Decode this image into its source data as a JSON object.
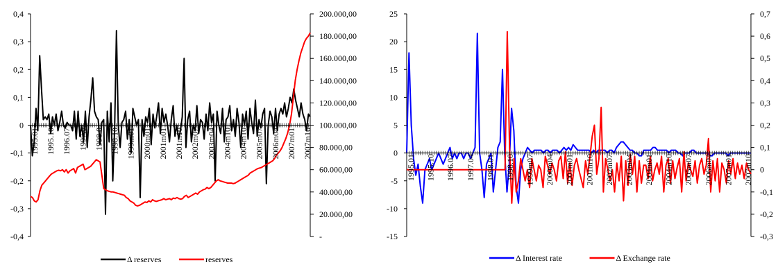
{
  "chart_data": [
    {
      "type": "line",
      "x_tick_labels": [
        "1995.01",
        "1995.10",
        "1996.07",
        "1997.04",
        "1998.01",
        "1998.10",
        "1999.07",
        "2000.04",
        "2001.01",
        "2001.10",
        "2002.07",
        "2003.04",
        "2004.01",
        "2004.10",
        "2005.07",
        "2006.04",
        "2007.01",
        "2007.10"
      ],
      "x_ticks_shown": [
        "1995.01",
        "1995.10",
        "1996.07",
        "1997.0",
        "1998.0",
        "1998.10",
        "1999m01",
        "2000m01",
        "2001m01",
        "2001m10",
        "2002m07",
        "2003m04",
        "2004m10",
        "2004m10",
        "2005m07",
        "2006m04",
        "2007m01",
        "2007m10"
      ],
      "y_left_ticks": [
        "0,4",
        "0,3",
        "0,2",
        "0,1",
        "0",
        "-0,1",
        "-0,2",
        "-0,3",
        "-0,4"
      ],
      "y_left_range": [
        -0.4,
        0.4
      ],
      "y_right_ticks": [
        "200.000,00",
        "180.000,00",
        "160.000,00",
        "140.000,00",
        "120.000,00",
        "100.000,00",
        "80.000,00",
        "60.000,00",
        "40.000,00",
        "20.000,00",
        "-"
      ],
      "y_right_range": [
        0,
        200000
      ],
      "series": [
        {
          "name": "Δ reserves",
          "color": "#000000",
          "axis": "left",
          "values": [
            0.0,
            -0.11,
            -0.06,
            0.06,
            -0.02,
            0.25,
            0.13,
            0.02,
            0.03,
            0.02,
            0.04,
            -0.03,
            0.03,
            0.0,
            0.04,
            -0.02,
            0.01,
            0.05,
            0.0,
            -0.01,
            0.01,
            0.0,
            0.0,
            -0.02,
            0.05,
            -0.05,
            0.05,
            -0.04,
            0.0,
            -0.06,
            0.05,
            -0.08,
            0.03,
            0.09,
            0.17,
            0.05,
            0.03,
            0.02,
            -0.07,
            0.01,
            0.02,
            -0.32,
            0.05,
            -0.06,
            0.08,
            -0.2,
            -0.01,
            0.34,
            0.0,
            -0.08,
            0.01,
            0.02,
            0.05,
            -0.05,
            0.02,
            -0.1,
            0.06,
            0.03,
            0.0,
            0.02,
            -0.26,
            0.02,
            -0.04,
            0.03,
            0.01,
            0.06,
            -0.07,
            0.04,
            -0.01,
            0.03,
            0.08,
            -0.03,
            0.06,
            0.01,
            0.04,
            0.0,
            -0.06,
            0.02,
            0.07,
            -0.04,
            0.0,
            -0.05,
            -0.02,
            0.03,
            0.24,
            -0.08,
            0.02,
            0.05,
            -0.06,
            0.0,
            -0.02,
            0.07,
            -0.03,
            0.02,
            0.01,
            -0.05,
            0.04,
            -0.02,
            0.08,
            0.01,
            0.04,
            -0.2,
            0.05,
            0.0,
            -0.03,
            0.06,
            -0.06,
            0.02,
            0.03,
            0.07,
            -0.02,
            0.02,
            -0.04,
            0.06,
            0.01,
            -0.08,
            0.04,
            0.0,
            0.05,
            -0.05,
            0.06,
            0.01,
            -0.03,
            0.09,
            -0.04,
            0.02,
            -0.01,
            0.04,
            0.06,
            -0.21,
            0.0,
            0.05,
            0.03,
            -0.03,
            0.06,
            -0.02,
            0.04,
            0.06,
            0.04,
            0.08,
            0.03,
            0.06,
            0.1,
            0.08,
            0.13,
            0.09,
            0.06,
            0.03,
            0.08,
            0.04,
            0.02,
            -0.02,
            0.04,
            0.03
          ]
        },
        {
          "name": "reserves",
          "color": "#ff0000",
          "axis": "right",
          "values": [
            36000,
            35000,
            32000,
            31000,
            33000,
            41000,
            46000,
            48000,
            50000,
            52000,
            54000,
            56000,
            57000,
            58000,
            59000,
            59500,
            59000,
            60000,
            58000,
            60000,
            57000,
            59000,
            60000,
            61000,
            57000,
            62000,
            63000,
            64000,
            65000,
            60000,
            61000,
            62000,
            63000,
            65000,
            67000,
            69000,
            68000,
            67000,
            55000,
            43000,
            42000,
            41000,
            40500,
            40000,
            40000,
            39500,
            39000,
            38500,
            38000,
            37500,
            37000,
            35000,
            34000,
            32000,
            31000,
            30000,
            28000,
            27500,
            28000,
            29000,
            30000,
            31000,
            30500,
            32000,
            31000,
            33000,
            32000,
            31500,
            32000,
            32500,
            33000,
            34000,
            33000,
            33500,
            34000,
            33000,
            34500,
            34000,
            35000,
            34000,
            33500,
            34000,
            36000,
            37000,
            35000,
            36000,
            37000,
            38000,
            39000,
            38000,
            40000,
            41000,
            42000,
            42500,
            44000,
            43000,
            44000,
            46000,
            48000,
            50000,
            51000,
            50000,
            49500,
            49000,
            48500,
            48000,
            48000,
            48000,
            47500,
            48000,
            49000,
            50000,
            51000,
            52000,
            53000,
            54000,
            55000,
            57000,
            58000,
            59000,
            60000,
            61000,
            61500,
            62000,
            63000,
            64000,
            65000,
            66000,
            67000,
            68000,
            70000,
            73000,
            75000,
            77000,
            80000,
            84000,
            88000,
            93000,
            100000,
            110000,
            125000,
            140000,
            150000,
            158000,
            165000,
            170000,
            175000,
            178000,
            180000,
            183000
          ]
        }
      ]
    },
    {
      "type": "line",
      "x_tick_labels": [
        "1995.01",
        "1995.10",
        "1996.07",
        "1997.04",
        "1998.01",
        "1998.10",
        "1999m07",
        "2000m04",
        "2001m01",
        "2001m10",
        "2002m07",
        "2003m04",
        "2004m01",
        "2004m10",
        "2005m07",
        "2006m04",
        "2007m01",
        "2007m10"
      ],
      "x_ticks_shown": [
        "1995.01",
        "1995.10",
        "1996.07",
        "1997.04",
        "1998.01",
        "1998.10",
        "1999m07",
        "2000m04",
        "2001m01",
        "2001m10",
        "2002m07",
        "2003m04",
        "2004m01",
        "2004m10",
        "2005m07",
        "2006m04",
        "2007m01",
        "2007m10"
      ],
      "y_left_ticks": [
        "25",
        "20",
        "15",
        "10",
        "5",
        "0",
        "-5",
        "-10",
        "-15"
      ],
      "y_left_range": [
        -15,
        25
      ],
      "y_right_ticks": [
        "0,7",
        "0,6",
        "0,5",
        "0,4",
        "0,3",
        "0,2",
        "0,1",
        "0",
        "-0,1",
        "-0,2",
        "-0,3"
      ],
      "y_right_range": [
        -0.3,
        0.7
      ],
      "series": [
        {
          "name": "Δ Interest rate",
          "color": "#0000ff",
          "axis": "left",
          "values": [
            0.0,
            18.0,
            5.0,
            -1.0,
            -4.0,
            -2.0,
            -6.0,
            -9.0,
            -3.0,
            -2.0,
            -1.0,
            -3.0,
            -2.0,
            -1.0,
            0.0,
            -1.0,
            -2.0,
            -1.0,
            0.0,
            1.0,
            -1.0,
            0.0,
            -1.0,
            0.0,
            0.0,
            -1.0,
            0.0,
            0.0,
            -1.0,
            0.0,
            1.0,
            21.5,
            0.0,
            -3.0,
            -8.0,
            -2.0,
            -1.0,
            0.0,
            -7.0,
            -3.0,
            1.0,
            2.0,
            15.0,
            0.0,
            -7.0,
            -2.0,
            8.0,
            4.0,
            -6.0,
            -9.0,
            -3.0,
            -1.0,
            0.0,
            1.0,
            0.5,
            0.0,
            0.5,
            0.5,
            0.5,
            0.5,
            0.0,
            0.5,
            0.5,
            0.0,
            0.5,
            0.5,
            0.5,
            0.0,
            0.5,
            1.0,
            0.5,
            1.0,
            0.5,
            1.5,
            1.0,
            0.5,
            0.5,
            0.5,
            0.5,
            0.5,
            0.5,
            0.0,
            0.5,
            0.0,
            0.5,
            0.5,
            0.5,
            0.5,
            0.0,
            0.5,
            0.5,
            0.0,
            1.0,
            1.5,
            2.0,
            2.0,
            1.5,
            1.0,
            0.5,
            0.5,
            0.0,
            0.0,
            -0.5,
            -0.5,
            0.5,
            0.5,
            0.5,
            0.5,
            1.0,
            1.0,
            0.5,
            0.5,
            0.5,
            0.5,
            0.5,
            0.0,
            0.5,
            0.5,
            0.5,
            0.0,
            0.0,
            -0.5,
            0.0,
            0.0,
            0.0,
            0.5,
            0.5,
            0.0,
            0.0,
            0.0,
            0.0,
            0.0,
            0.0,
            -0.5,
            -0.5,
            0.0,
            0.0,
            0.0,
            0.0,
            0.0,
            0.0,
            -0.5,
            0.0,
            0.0,
            0.0,
            0.0,
            0.0,
            0.0,
            0.0,
            0.0,
            0.0,
            0.0
          ]
        },
        {
          "name": "Δ Exchange rate",
          "color": "#ff0000",
          "axis": "right",
          "values": [
            0.0,
            0.0,
            0.0,
            0.0,
            0.0,
            0.0,
            0.0,
            0.0,
            0.0,
            0.0,
            0.0,
            0.0,
            0.0,
            0.0,
            0.0,
            0.0,
            0.0,
            0.0,
            0.0,
            0.0,
            0.0,
            0.0,
            0.0,
            0.0,
            0.0,
            0.0,
            0.0,
            0.0,
            0.0,
            0.0,
            0.0,
            0.0,
            0.0,
            0.0,
            0.0,
            0.0,
            0.0,
            0.0,
            0.0,
            0.0,
            0.0,
            0.0,
            0.0,
            0.0,
            0.0,
            0.62,
            0.1,
            -0.15,
            0.05,
            -0.1,
            -0.05,
            0.05,
            0.0,
            -0.05,
            0.0,
            -0.08,
            0.05,
            0.0,
            -0.05,
            0.02,
            0.0,
            -0.08,
            0.06,
            0.02,
            -0.02,
            0.03,
            0.0,
            -0.05,
            0.04,
            0.06,
            -0.04,
            0.08,
            -0.06,
            0.03,
            -0.07,
            0.02,
            0.05,
            0.0,
            -0.04,
            -0.08,
            0.04,
            -0.02,
            0.06,
            0.15,
            0.2,
            -0.02,
            0.05,
            0.28,
            -0.1,
            0.05,
            0.0,
            -0.05,
            0.0,
            -0.1,
            0.03,
            -0.05,
            0.06,
            -0.14,
            0.04,
            -0.07,
            0.07,
            -0.02,
            0.06,
            -0.1,
            0.04,
            -0.06,
            0.02,
            0.02,
            -0.04,
            0.06,
            -0.05,
            0.0,
            0.03,
            -0.02,
            0.06,
            -0.1,
            0.02,
            0.05,
            -0.06,
            0.04,
            -0.04,
            0.01,
            0.05,
            -0.1,
            0.08,
            -0.05,
            0.03,
            0.0,
            -0.03,
            0.04,
            -0.06,
            0.02,
            0.05,
            -0.02,
            0.02,
            0.14,
            -0.1,
            0.04,
            -0.05,
            0.05,
            -0.1,
            0.03,
            0.0,
            -0.06,
            0.04,
            -0.02,
            0.05,
            -0.04,
            0.03,
            -0.02,
            0.02,
            -0.04,
            0.03,
            0.0,
            -0.02
          ]
        }
      ]
    }
  ]
}
